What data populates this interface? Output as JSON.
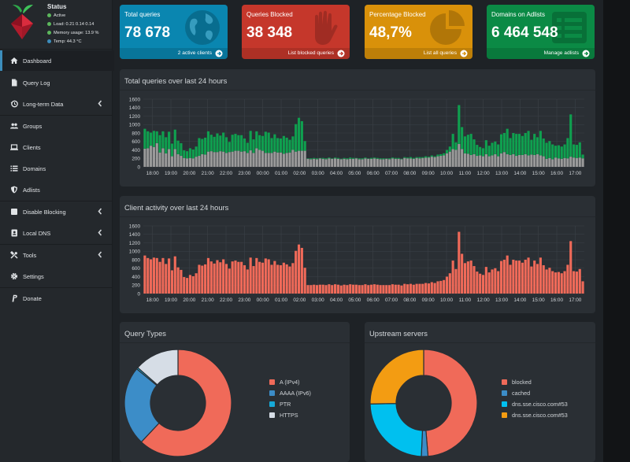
{
  "status": {
    "title": "Status",
    "active": "Active",
    "load": "Load:  0.21  0.14  0.14",
    "memory": "Memory usage:  13.9 %",
    "temp": "Temp: 44.3 °C",
    "colors": {
      "active": "#5cb85c",
      "load": "#5cb85c",
      "memory": "#5cb85c",
      "temp": "#3c8dbc"
    }
  },
  "nav": [
    {
      "label": "Dashboard",
      "icon": "home-icon",
      "active": true
    },
    {
      "label": "Query Log",
      "icon": "file-icon"
    },
    {
      "label": "Long-term Data",
      "icon": "history-icon",
      "chevron": true
    },
    {
      "label": "Groups",
      "icon": "users-icon"
    },
    {
      "label": "Clients",
      "icon": "laptop-icon"
    },
    {
      "label": "Domains",
      "icon": "list-icon"
    },
    {
      "label": "Adlists",
      "icon": "shield-icon"
    },
    {
      "label": "Disable Blocking",
      "icon": "stop-icon",
      "chevron": true
    },
    {
      "label": "Local DNS",
      "icon": "address-book-icon",
      "chevron": true
    },
    {
      "label": "Tools",
      "icon": "tools-icon",
      "chevron": true
    },
    {
      "label": "Settings",
      "icon": "gear-icon"
    },
    {
      "label": "Donate",
      "icon": "paypal-icon"
    }
  ],
  "cards": [
    {
      "title": "Total queries",
      "value": "78 678",
      "footer": "2 active clients",
      "color": "#0a86b0",
      "icon": "globe-icon"
    },
    {
      "title": "Queries Blocked",
      "value": "38 348",
      "footer": "List blocked queries",
      "color": "#c5372b",
      "icon": "hand-icon"
    },
    {
      "title": "Percentage Blocked",
      "value": "48,7%",
      "footer": "List all queries",
      "color": "#d9910a",
      "icon": "pie-icon"
    },
    {
      "title": "Domains on Adlists",
      "value": "6 464 548",
      "footer": "Manage adlists",
      "color": "#0b8a45",
      "icon": "list-alt-icon"
    }
  ],
  "panels": {
    "queries_title": "Total queries over last 24 hours",
    "clients_title": "Client activity over last 24 hours",
    "query_types_title": "Query Types",
    "upstream_title": "Upstream servers"
  },
  "chart_data": [
    {
      "type": "bar",
      "title": "Total queries over last 24 hours",
      "stacked": true,
      "ylim": [
        0,
        1600
      ],
      "yticks": [
        0,
        200,
        400,
        600,
        800,
        1000,
        1200,
        1400,
        1600
      ],
      "xticks": [
        "18:00",
        "19:00",
        "20:00",
        "21:00",
        "22:00",
        "23:00",
        "00:00",
        "01:00",
        "02:00",
        "03:00",
        "04:00",
        "05:00",
        "06:00",
        "07:00",
        "08:00",
        "09:00",
        "10:00",
        "11:00",
        "12:00",
        "13:00",
        "14:00",
        "15:00",
        "16:00",
        "17:00"
      ],
      "grid": true,
      "series_colors": [
        "#9a9a9a",
        "#0fa04f"
      ],
      "series": [
        {
          "values": [
            430,
            440,
            500,
            470,
            560,
            340,
            440,
            320,
            420,
            250,
            420,
            300,
            260,
            210,
            200,
            210,
            200,
            240,
            260,
            300,
            290,
            360,
            370,
            350,
            350,
            370,
            360,
            330,
            350,
            360,
            380,
            380,
            360,
            370,
            330,
            390,
            330,
            440,
            400,
            380,
            330,
            330,
            330,
            360,
            340,
            340,
            310,
            330,
            340,
            400,
            360,
            380,
            380,
            380,
            190,
            180,
            190,
            180,
            200,
            190,
            180,
            200,
            190,
            200,
            190,
            180,
            190,
            180,
            190,
            190,
            200,
            180,
            180,
            200,
            190,
            190,
            200,
            190,
            180,
            180,
            190,
            180,
            200,
            190,
            190,
            180,
            210,
            200,
            200,
            190,
            210,
            200,
            210,
            220,
            220,
            240,
            230,
            250,
            260,
            270,
            320,
            360,
            420,
            400,
            540,
            420,
            320,
            310,
            280,
            300,
            260,
            270,
            250,
            300,
            250,
            270,
            300,
            250,
            320,
            350,
            300,
            280,
            300,
            260,
            280,
            280,
            300,
            270,
            290,
            280,
            300,
            270,
            250,
            190,
            210,
            180,
            220,
            200,
            190,
            210,
            200,
            240,
            220,
            210,
            220,
            200
          ]
        },
        {
          "values": [
            470,
            400,
            310,
            380,
            280,
            410,
            400,
            380,
            410,
            300,
            460,
            320,
            300,
            180,
            170,
            230,
            210,
            240,
            420,
            360,
            400,
            480,
            390,
            360,
            440,
            370,
            450,
            370,
            240,
            400,
            400,
            370,
            390,
            300,
            240,
            460,
            320,
            400,
            350,
            350,
            500,
            480,
            350,
            410,
            340,
            330,
            420,
            360,
            300,
            320,
            650,
            780,
            700,
            230,
            10,
            20,
            20,
            20,
            10,
            20,
            20,
            20,
            10,
            20,
            20,
            10,
            20,
            20,
            30,
            20,
            10,
            20,
            20,
            20,
            10,
            20,
            20,
            20,
            20,
            20,
            10,
            20,
            20,
            20,
            20,
            10,
            20,
            20,
            30,
            20,
            20,
            30,
            20,
            30,
            20,
            30,
            20,
            40,
            40,
            50,
            80,
            120,
            360,
            180,
            920,
            520,
            400,
            450,
            500,
            350,
            260,
            200,
            190,
            330,
            250,
            300,
            300,
            280,
            450,
            450,
            600,
            400,
            500,
            520,
            500,
            450,
            500,
            580,
            350,
            500,
            400,
            580,
            420,
            380,
            400,
            350,
            280,
            310,
            290,
            320,
            480,
            1000,
            310,
            310,
            360,
            90
          ]
        }
      ]
    },
    {
      "type": "bar",
      "title": "Client activity over last 24 hours",
      "ylim": [
        0,
        1600
      ],
      "yticks": [
        0,
        200,
        400,
        600,
        800,
        1000,
        1200,
        1400,
        1600
      ],
      "xticks": [
        "18:00",
        "19:00",
        "20:00",
        "21:00",
        "22:00",
        "23:00",
        "00:00",
        "01:00",
        "02:00",
        "03:00",
        "04:00",
        "05:00",
        "06:00",
        "07:00",
        "08:00",
        "09:00",
        "10:00",
        "11:00",
        "12:00",
        "13:00",
        "14:00",
        "15:00",
        "16:00",
        "17:00"
      ],
      "grid": true,
      "series_colors": [
        "#f06a59"
      ],
      "series": [
        {
          "values": [
            900,
            840,
            810,
            850,
            840,
            750,
            840,
            700,
            830,
            550,
            880,
            620,
            560,
            390,
            370,
            440,
            410,
            480,
            680,
            660,
            690,
            840,
            760,
            710,
            790,
            740,
            810,
            700,
            590,
            760,
            780,
            750,
            750,
            670,
            570,
            850,
            650,
            840,
            750,
            730,
            830,
            810,
            680,
            770,
            680,
            670,
            730,
            690,
            640,
            720,
            1010,
            1160,
            1080,
            610,
            200,
            200,
            210,
            200,
            210,
            210,
            200,
            220,
            200,
            220,
            210,
            190,
            210,
            200,
            220,
            210,
            210,
            200,
            200,
            220,
            200,
            210,
            220,
            210,
            200,
            200,
            200,
            200,
            220,
            210,
            210,
            190,
            230,
            220,
            230,
            210,
            230,
            230,
            230,
            250,
            240,
            270,
            250,
            290,
            300,
            320,
            400,
            480,
            780,
            580,
            1460,
            940,
            720,
            760,
            780,
            650,
            520,
            470,
            440,
            630,
            500,
            570,
            600,
            530,
            770,
            800,
            900,
            680,
            800,
            780,
            780,
            730,
            800,
            850,
            640,
            780,
            700,
            850,
            670,
            570,
            610,
            530,
            500,
            510,
            480,
            530,
            680,
            1240,
            530,
            520,
            580,
            290
          ]
        }
      ]
    },
    {
      "type": "pie",
      "title": "Query Types",
      "doughnut": true,
      "labels": [
        "A (IPv4)",
        "AAAA (IPv6)",
        "PTR",
        "HTTPS"
      ],
      "values": [
        62,
        24,
        0.5,
        13.5
      ],
      "colors": [
        "#f06a59",
        "#3c8dc8",
        "#16a9d8",
        "#d6dde6"
      ]
    },
    {
      "type": "pie",
      "title": "Upstream servers",
      "doughnut": true,
      "labels": [
        "blocked",
        "cached",
        "dns.sse.cisco.com#53",
        "dns.sse.cisco.com#53"
      ],
      "values": [
        48.7,
        2,
        24,
        25.3
      ],
      "colors": [
        "#f06a59",
        "#3c8dc8",
        "#00c0ef",
        "#f39c12"
      ]
    }
  ]
}
